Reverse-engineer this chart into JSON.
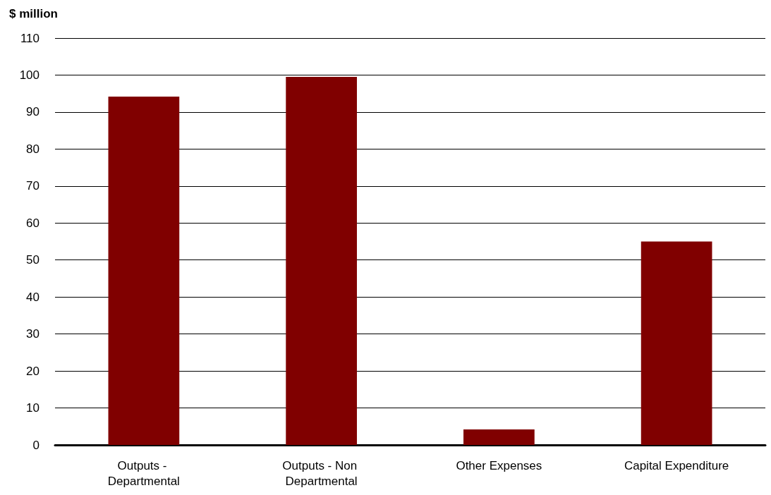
{
  "chart_data": {
    "type": "bar",
    "ylabel": "$ million",
    "categories": [
      "Outputs - Departmental",
      "Outputs - Non Departmental",
      "Other Expenses",
      "Capital Expenditure"
    ],
    "values": [
      94.2,
      99.5,
      4.2,
      55
    ],
    "color": "#800000",
    "ylim": [
      0,
      110
    ],
    "yticks": [
      0,
      10,
      20,
      30,
      40,
      50,
      60,
      70,
      80,
      90,
      100,
      110
    ],
    "grid": "y"
  }
}
